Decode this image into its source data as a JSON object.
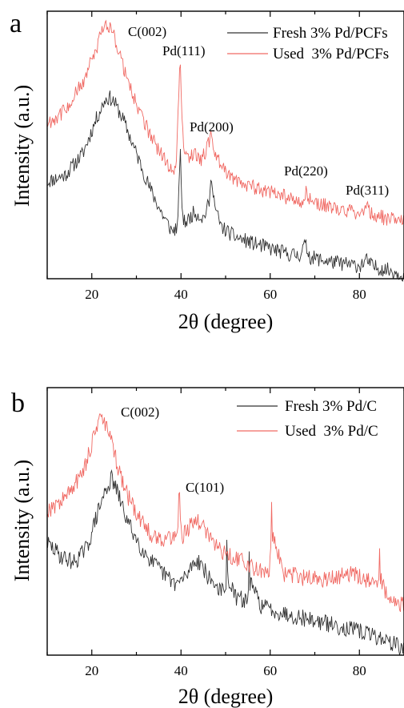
{
  "chart_data": [
    {
      "type": "line",
      "panel_label": "a",
      "xlabel": "2θ (degree)",
      "ylabel": "Intensity (a.u.)",
      "xlim": [
        10,
        90
      ],
      "xticks": [
        20,
        40,
        60,
        80
      ],
      "y_ticks_shown": false,
      "grid": false,
      "legend_position": "top-right",
      "series": [
        {
          "name": "Fresh 3% Pd/PCFs",
          "color": "#333333",
          "x": [
            10,
            14,
            18,
            21,
            23,
            24,
            25,
            27,
            30,
            33,
            36,
            38,
            39.3,
            39.8,
            40.1,
            40.6,
            41.5,
            43,
            45,
            46.3,
            46.9,
            47.6,
            49,
            52,
            56,
            60,
            64,
            66.5,
            67.8,
            69,
            72,
            76,
            80,
            81.6,
            83,
            86,
            90
          ],
          "y": [
            45,
            48,
            58,
            74,
            83,
            84,
            82,
            74,
            58,
            42,
            29,
            22,
            24,
            62,
            38,
            26,
            27,
            31,
            28,
            35,
            48,
            33,
            24,
            19.5,
            16.5,
            14,
            11.5,
            10.8,
            16,
            10,
            8.5,
            7,
            6,
            8.5,
            5.6,
            4.2,
            2
          ]
        },
        {
          "name": "Used  3% Pd/PCFs",
          "color": "#f06a64",
          "x": [
            10,
            14,
            18,
            21,
            22.5,
            23.5,
            24.5,
            26,
            28,
            31,
            34,
            37,
            38.8,
            39.4,
            39.8,
            40.3,
            41,
            42.5,
            44.5,
            46,
            46.8,
            47.8,
            50,
            53,
            57,
            61,
            65,
            67,
            68,
            69.5,
            73,
            77,
            80.5,
            81.8,
            83,
            86,
            90
          ],
          "y": [
            72,
            78,
            91,
            106,
            116,
            118,
            116,
            106,
            92,
            76,
            63,
            53,
            50,
            78,
            102,
            70,
            56,
            58,
            55,
            61,
            68,
            57,
            49,
            45,
            42,
            39.5,
            37,
            35.5,
            40,
            35,
            33.5,
            31.5,
            30.5,
            33,
            29.5,
            28,
            26
          ]
        }
      ],
      "annotations": [
        "C(002)",
        "Pd(111)",
        "Pd(200)",
        "Pd(220)",
        "Pd(311)"
      ]
    },
    {
      "type": "line",
      "panel_label": "b",
      "xlabel": "2θ (degree)",
      "ylabel": "Intensity (a.u.)",
      "xlim": [
        10,
        90
      ],
      "xticks": [
        20,
        40,
        60,
        80
      ],
      "y_ticks_shown": false,
      "grid": false,
      "legend_position": "top-right",
      "series": [
        {
          "name": "Fresh 3% Pd/C",
          "color": "#333333",
          "x": [
            10,
            13,
            16,
            19,
            21,
            23,
            24.5,
            26,
            28,
            31,
            34,
            37,
            39,
            41,
            43,
            44.5,
            46,
            48,
            50,
            50.3,
            52,
            55,
            55.3,
            58,
            62,
            66,
            70,
            74,
            78,
            82,
            86,
            90
          ],
          "y": [
            52,
            46,
            43,
            50,
            64,
            76,
            82,
            74,
            62,
            50,
            42,
            36,
            33,
            36,
            44,
            43,
            36,
            32,
            28,
            38,
            27,
            25,
            34,
            23,
            20,
            18,
            16,
            14,
            12,
            10,
            7,
            3
          ],
          "spikes_at": [
            50.3,
            55.3
          ]
        },
        {
          "name": "Used  3% Pd/C",
          "color": "#f06a64",
          "x": [
            10,
            13,
            16,
            18.5,
            20,
            21,
            22,
            23,
            24.5,
            26,
            28,
            31,
            34,
            37,
            39,
            39.6,
            40.4,
            42,
            43.5,
            45,
            47,
            50,
            54,
            57,
            59.9,
            60.3,
            63,
            67,
            71,
            75,
            78.5,
            81,
            84,
            84.5,
            86,
            90
          ],
          "y": [
            67,
            71,
            78,
            88,
            98,
            106,
            110,
            107,
            98,
            86,
            74,
            62,
            54,
            54,
            56,
            62,
            55,
            60,
            62,
            60,
            52,
            47,
            43,
            40,
            39,
            58,
            38,
            36,
            35,
            36,
            38,
            36,
            31,
            37,
            28,
            23
          ],
          "spikes_at": [
            39.6,
            60.3,
            84.5
          ]
        }
      ],
      "annotations": [
        "C(002)",
        "C(101)"
      ]
    }
  ]
}
